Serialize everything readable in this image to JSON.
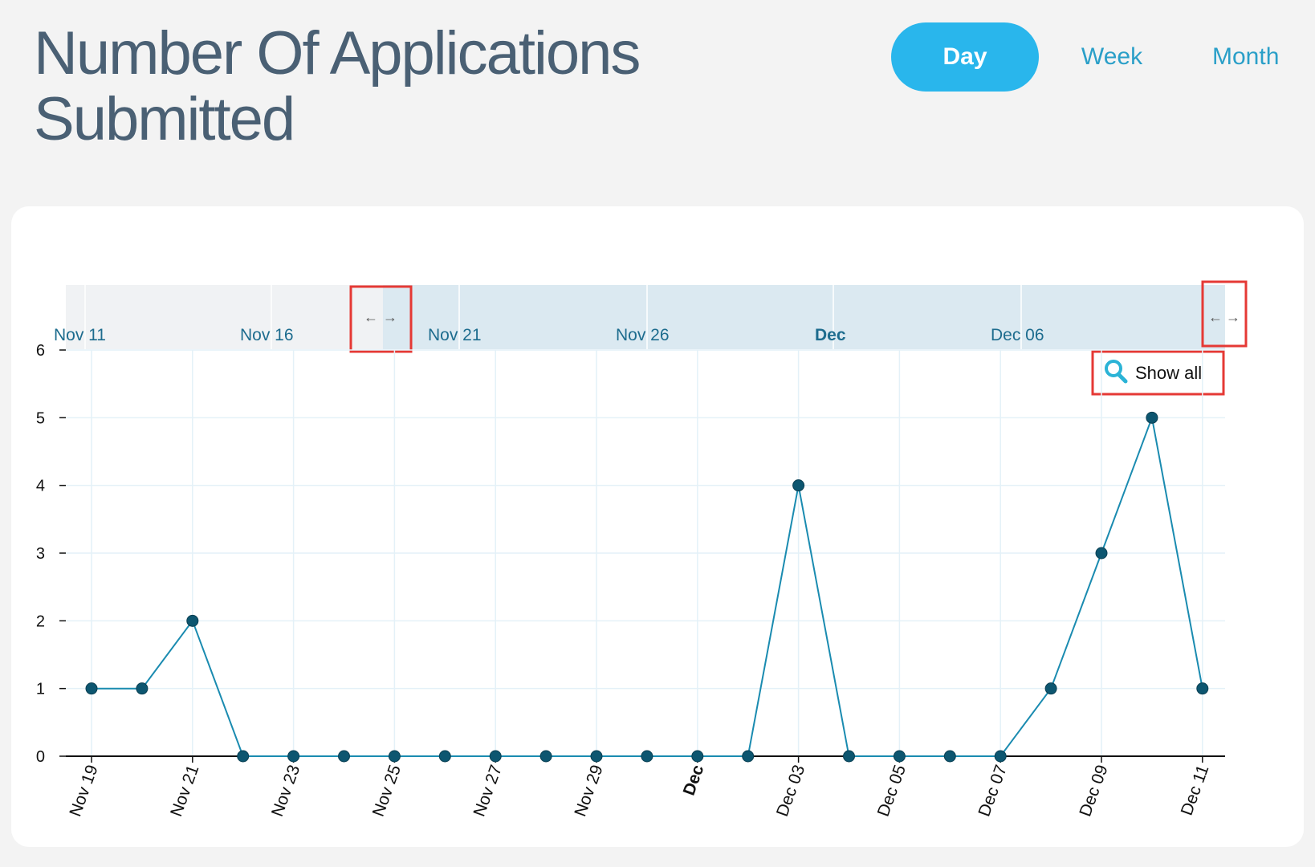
{
  "title": "Number Of Applications Submitted",
  "range_buttons": {
    "day": "Day",
    "week": "Week",
    "month": "Month",
    "active": "day"
  },
  "navigator": {
    "labels": [
      "Nov 11",
      "Nov 16",
      "Nov 21",
      "Nov 26",
      "Dec",
      "Dec 06"
    ],
    "bold_label": "Dec"
  },
  "show_all_label": "Show all",
  "colors": {
    "accent": "#29b6ec",
    "link": "#2a9fc8",
    "series": "#1a8bb0",
    "marker": "#0d5670",
    "title": "#4a6074",
    "highlight": "#e53935"
  },
  "chart_data": {
    "type": "line",
    "x": [
      "Nov 19",
      "Nov 20",
      "Nov 21",
      "Nov 22",
      "Nov 23",
      "Nov 24",
      "Nov 25",
      "Nov 26",
      "Nov 27",
      "Nov 28",
      "Nov 29",
      "Nov 30",
      "Dec 01",
      "Dec 02",
      "Dec 03",
      "Dec 04",
      "Dec 05",
      "Dec 06",
      "Dec 07",
      "Dec 08",
      "Dec 09",
      "Dec 10",
      "Dec 11"
    ],
    "values": [
      1,
      1,
      2,
      0,
      0,
      0,
      0,
      0,
      0,
      0,
      0,
      0,
      0,
      0,
      4,
      0,
      0,
      0,
      0,
      1,
      3,
      5,
      1
    ],
    "x_tick_labels": [
      "Nov 19",
      "Nov 21",
      "Nov 23",
      "Nov 25",
      "Nov 27",
      "Nov 29",
      "Dec",
      "Dec 03",
      "Dec 05",
      "Dec 07",
      "Dec 09",
      "Dec 11"
    ],
    "bold_tick": "Dec",
    "y_ticks": [
      0,
      1,
      2,
      3,
      4,
      5,
      6
    ],
    "ylim": [
      0,
      6
    ],
    "grid": true
  }
}
